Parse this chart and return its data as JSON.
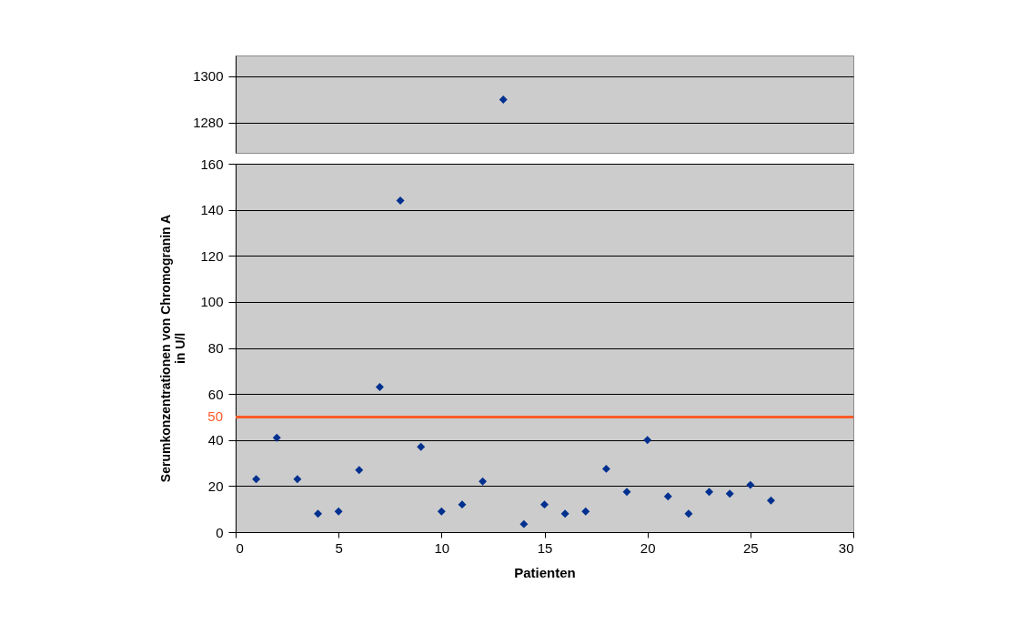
{
  "chart_data": [
    {
      "type": "scatter",
      "x": [
        13
      ],
      "values": [
        1290
      ],
      "color": "#00308f",
      "marker": "diamond",
      "xlim": [
        0,
        30
      ],
      "ylim": [
        1267,
        1309
      ],
      "yticks": [
        1280,
        1300
      ],
      "grid": "y",
      "tick_labels": "y"
    },
    {
      "type": "scatter",
      "xlabel": "Patienten",
      "ylabel": "Serumkonzentrationen von Chromogranin A\nin U/l",
      "x": [
        1,
        2,
        3,
        4,
        5,
        6,
        7,
        8,
        9,
        10,
        11,
        12,
        13,
        14,
        15,
        16,
        17,
        18,
        19,
        20,
        21,
        22,
        23,
        24,
        25,
        26
      ],
      "values": [
        23,
        41,
        23,
        8,
        9,
        27,
        63,
        144,
        37,
        9,
        12,
        22,
        null,
        3.5,
        12,
        8,
        9,
        27.5,
        17.5,
        40,
        15.5,
        8,
        17.5,
        16.7,
        20.5,
        13.7
      ],
      "color": "#00308f",
      "marker": "diamond",
      "xlim": [
        0,
        30
      ],
      "xticks": [
        0,
        5,
        10,
        15,
        20,
        25,
        30
      ],
      "ylim": [
        0,
        160
      ],
      "yticks": [
        0,
        20,
        40,
        60,
        80,
        100,
        120,
        140,
        160
      ],
      "grid": "y",
      "ref_lines": [
        {
          "axis": "y",
          "value": 50,
          "label": "50",
          "color": "#ff5a28"
        }
      ]
    }
  ]
}
